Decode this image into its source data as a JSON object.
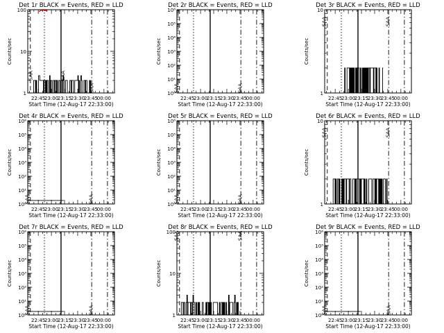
{
  "figure": {
    "colors": {
      "events": "#000000",
      "lld": "#ff0000",
      "background": "#ffffff"
    }
  },
  "chart_data": [
    {
      "type": "line",
      "title": "Det 1r BLACK = Events, RED = LLD",
      "xlabel": "Start Time (12-Aug-17 22:33:00)",
      "ylabel": "Counts/sec",
      "y_scale": "log",
      "ylim": [
        1,
        100
      ],
      "y_ticks": [
        {
          "v": 1,
          "label": "1"
        },
        {
          "v": 10,
          "label": "10"
        },
        {
          "v": 100,
          "label": "100"
        }
      ],
      "xlim": [
        "22:33",
        "00:12"
      ],
      "x_ticks": [
        "22:45",
        "23:00",
        "23:15",
        "23:30",
        "23:45",
        "00:00"
      ],
      "vlines": [
        {
          "x": "22:36",
          "style": "dashed"
        },
        {
          "x": "22:52",
          "style": "dotted"
        },
        {
          "x": "23:11",
          "style": "solid"
        },
        {
          "x": "23:46",
          "style": "dashdot"
        },
        {
          "x": "00:04",
          "style": "dashdot"
        }
      ],
      "annotations": [
        {
          "text": "SAA",
          "x": "22:38",
          "y": 2.6
        },
        {
          "text": "SAA",
          "x": "23:15",
          "y": 2.6
        },
        {
          "text": "SAA",
          "x": "23:48",
          "y": 1.3
        }
      ],
      "series": [
        {
          "name": "Events",
          "color": "#000000",
          "from": "22:39",
          "to": "23:45",
          "low": 1,
          "high": 2,
          "peak": 2.6
        },
        {
          "name": "LLD",
          "color": "#ff0000",
          "from": "22:46",
          "to": "22:55",
          "low": 90,
          "high": 100
        }
      ]
    },
    {
      "type": "line",
      "title": "Det 2r BLACK = Events, RED = LLD",
      "xlabel": "Start Time (12-Aug-17 22:33:00)",
      "ylabel": "Counts/sec",
      "y_scale": "log",
      "ylim": [
        1,
        1000000
      ],
      "y_ticks": [
        {
          "v": 1,
          "label": "10⁰"
        },
        {
          "v": 10,
          "label": "10¹"
        },
        {
          "v": 100,
          "label": "10²"
        },
        {
          "v": 1000,
          "label": "10³"
        },
        {
          "v": 10000,
          "label": "10⁴"
        },
        {
          "v": 100000,
          "label": "10⁵"
        },
        {
          "v": 1000000,
          "label": "10⁶"
        }
      ],
      "xlim": [
        "22:33",
        "00:12"
      ],
      "x_ticks": [
        "22:45",
        "23:00",
        "23:15",
        "23:30",
        "23:45",
        "00:00"
      ],
      "vlines": [
        {
          "x": "22:36",
          "style": "dashed"
        },
        {
          "x": "22:52",
          "style": "dotted"
        },
        {
          "x": "23:11",
          "style": "solid"
        },
        {
          "x": "23:46",
          "style": "dashdot"
        },
        {
          "x": "00:04",
          "style": "dashdot"
        }
      ],
      "annotations": [
        {
          "text": "SAA",
          "x": "22:34",
          "y": 2.2
        },
        {
          "text": "SAA",
          "x": "23:47",
          "y": 2.2
        }
      ],
      "series": []
    },
    {
      "type": "line",
      "title": "Det 3r BLACK = Events, RED = LLD",
      "xlabel": "Start Time (12-Aug-17 22:33:00)",
      "ylabel": "Counts/sec",
      "y_scale": "log",
      "ylim": [
        1,
        10
      ],
      "y_ticks": [
        {
          "v": 1,
          "label": "1"
        },
        {
          "v": 10,
          "label": "10"
        }
      ],
      "xlim": [
        "22:33",
        "00:12"
      ],
      "x_ticks": [
        "22:45",
        "23:00",
        "23:15",
        "23:30",
        "23:45",
        "00:00"
      ],
      "vlines": [
        {
          "x": "22:36",
          "style": "dashed"
        },
        {
          "x": "22:52",
          "style": "dotted"
        },
        {
          "x": "23:11",
          "style": "solid"
        },
        {
          "x": "23:46",
          "style": "dashdot"
        },
        {
          "x": "00:04",
          "style": "dashdot"
        }
      ],
      "annotations": [
        {
          "text": "SAA",
          "x": "22:34",
          "y": 7.2
        },
        {
          "text": "SAA",
          "x": "23:47",
          "y": 7.2
        }
      ],
      "series": [
        {
          "name": "Events",
          "color": "#000000",
          "from": "22:55",
          "to": "23:40",
          "low": 1,
          "high": 2,
          "peak": 2
        }
      ]
    },
    {
      "type": "line",
      "title": "Det 4r BLACK = Events, RED = LLD",
      "xlabel": "Start Time (12-Aug-17 22:33:00)",
      "ylabel": "Counts/sec",
      "y_scale": "log",
      "ylim": [
        1,
        1000000
      ],
      "y_ticks": [
        {
          "v": 1,
          "label": "10⁰"
        },
        {
          "v": 10,
          "label": "10¹"
        },
        {
          "v": 100,
          "label": "10²"
        },
        {
          "v": 1000,
          "label": "10³"
        },
        {
          "v": 10000,
          "label": "10⁴"
        },
        {
          "v": 100000,
          "label": "10⁵"
        },
        {
          "v": 1000000,
          "label": "10⁶"
        }
      ],
      "xlim": [
        "22:33",
        "00:12"
      ],
      "x_ticks": [
        "22:45",
        "23:00",
        "23:15",
        "23:30",
        "23:45",
        "00:00"
      ],
      "vlines": [
        {
          "x": "22:36",
          "style": "dashed"
        },
        {
          "x": "22:52",
          "style": "dotted"
        },
        {
          "x": "23:11",
          "style": "solid"
        },
        {
          "x": "23:46",
          "style": "dashdot"
        },
        {
          "x": "00:04",
          "style": "dashdot"
        }
      ],
      "annotations": [
        {
          "text": "SAA",
          "x": "22:34",
          "y": 2.2
        },
        {
          "text": "SAA",
          "x": "23:47",
          "y": 2.2
        }
      ],
      "series": [
        {
          "name": "Events",
          "color": "#000000",
          "points": [
            [
              "22:33",
              1.8
            ],
            [
              "22:36",
              1.8
            ],
            [
              "23:11",
              1.8
            ],
            [
              "23:14",
              1.8
            ]
          ]
        }
      ]
    },
    {
      "type": "line",
      "title": "Det 5r BLACK = Events, RED = LLD",
      "xlabel": "Start Time (12-Aug-17 22:33:00)",
      "ylabel": "Counts/sec",
      "y_scale": "log",
      "ylim": [
        1,
        1000000
      ],
      "y_ticks": [
        {
          "v": 1,
          "label": "10⁰"
        },
        {
          "v": 10,
          "label": "10¹"
        },
        {
          "v": 100,
          "label": "10²"
        },
        {
          "v": 1000,
          "label": "10³"
        },
        {
          "v": 10000,
          "label": "10⁴"
        },
        {
          "v": 100000,
          "label": "10⁵"
        },
        {
          "v": 1000000,
          "label": "10⁶"
        }
      ],
      "xlim": [
        "22:33",
        "00:12"
      ],
      "x_ticks": [
        "22:45",
        "23:00",
        "23:15",
        "23:30",
        "23:45",
        "00:00"
      ],
      "vlines": [
        {
          "x": "22:36",
          "style": "dashed"
        },
        {
          "x": "22:52",
          "style": "dotted"
        },
        {
          "x": "23:11",
          "style": "solid"
        },
        {
          "x": "23:46",
          "style": "dashdot"
        },
        {
          "x": "00:04",
          "style": "dashdot"
        }
      ],
      "annotations": [
        {
          "text": "SAA",
          "x": "22:34",
          "y": 2.2
        },
        {
          "text": "SAA",
          "x": "23:47",
          "y": 2.2
        }
      ],
      "series": []
    },
    {
      "type": "line",
      "title": "Det 6r BLACK = Events, RED = LLD",
      "xlabel": "Start Time (12-Aug-17 22:33:00)",
      "ylabel": "Counts/sec",
      "y_scale": "log",
      "ylim": [
        1,
        10
      ],
      "y_ticks": [
        {
          "v": 1,
          "label": "1"
        },
        {
          "v": 10,
          "label": "10"
        }
      ],
      "xlim": [
        "22:33",
        "00:12"
      ],
      "x_ticks": [
        "22:45",
        "23:00",
        "23:15",
        "23:30",
        "23:45",
        "00:00"
      ],
      "vlines": [
        {
          "x": "22:36",
          "style": "dashed"
        },
        {
          "x": "22:52",
          "style": "dotted"
        },
        {
          "x": "23:11",
          "style": "solid"
        },
        {
          "x": "23:46",
          "style": "dashdot"
        },
        {
          "x": "00:04",
          "style": "dashdot"
        }
      ],
      "annotations": [
        {
          "text": "SAA",
          "x": "22:34",
          "y": 7.2
        },
        {
          "text": "SAA",
          "x": "23:47",
          "y": 7.2
        }
      ],
      "series": [
        {
          "name": "Events",
          "color": "#000000",
          "from": "22:42",
          "to": "23:45",
          "low": 1,
          "high": 2,
          "peak": 2
        }
      ]
    },
    {
      "type": "line",
      "title": "Det 7r BLACK = Events, RED = LLD",
      "xlabel": "Start Time (12-Aug-17 22:33:00)",
      "ylabel": "Counts/sec",
      "y_scale": "log",
      "ylim": [
        1,
        1000000
      ],
      "y_ticks": [
        {
          "v": 1,
          "label": "10⁰"
        },
        {
          "v": 10,
          "label": "10¹"
        },
        {
          "v": 100,
          "label": "10²"
        },
        {
          "v": 1000,
          "label": "10³"
        },
        {
          "v": 10000,
          "label": "10⁴"
        },
        {
          "v": 100000,
          "label": "10⁵"
        },
        {
          "v": 1000000,
          "label": "10⁶"
        }
      ],
      "xlim": [
        "22:33",
        "00:12"
      ],
      "x_ticks": [
        "22:45",
        "23:00",
        "23:15",
        "23:30",
        "23:45",
        "00:00"
      ],
      "vlines": [
        {
          "x": "22:36",
          "style": "dashed"
        },
        {
          "x": "22:52",
          "style": "dotted"
        },
        {
          "x": "23:11",
          "style": "solid"
        },
        {
          "x": "23:46",
          "style": "dashdot"
        },
        {
          "x": "00:04",
          "style": "dashdot"
        }
      ],
      "annotations": [
        {
          "text": "SAA",
          "x": "22:34",
          "y": 2.2
        },
        {
          "text": "SAA",
          "x": "23:47",
          "y": 2.2
        }
      ],
      "series": [
        {
          "name": "Events",
          "color": "#000000",
          "points": [
            [
              "22:33",
              1.8
            ],
            [
              "22:36",
              1.8
            ],
            [
              "23:11",
              1.8
            ],
            [
              "23:14",
              1.8
            ]
          ]
        }
      ]
    },
    {
      "type": "line",
      "title": "Det 8r BLACK = Events, RED = LLD",
      "xlabel": "Start Time (12-Aug-17 22:33:00)",
      "ylabel": "Counts/sec",
      "y_scale": "log",
      "ylim": [
        1,
        100
      ],
      "y_ticks": [
        {
          "v": 1,
          "label": "1"
        },
        {
          "v": 10,
          "label": "10"
        },
        {
          "v": 100,
          "label": "100"
        }
      ],
      "xlim": [
        "22:33",
        "00:12"
      ],
      "x_ticks": [
        "22:45",
        "23:00",
        "23:15",
        "23:30",
        "23:45",
        "00:00"
      ],
      "vlines": [
        {
          "x": "22:36",
          "style": "dashed"
        },
        {
          "x": "22:52",
          "style": "dotted"
        },
        {
          "x": "23:11",
          "style": "solid"
        },
        {
          "x": "23:46",
          "style": "dashdot"
        },
        {
          "x": "00:04",
          "style": "dashdot"
        }
      ],
      "annotations": [
        {
          "text": "SAA",
          "x": "22:34",
          "y": 80
        },
        {
          "text": "SAA",
          "x": "23:47",
          "y": 80
        }
      ],
      "series": [
        {
          "name": "Events",
          "color": "#000000",
          "from": "22:38",
          "to": "23:44",
          "low": 1,
          "high": 2,
          "peak": 3
        }
      ]
    },
    {
      "type": "line",
      "title": "Det 9r BLACK = Events, RED = LLD",
      "xlabel": "Start Time (12-Aug-17 22:33:00)",
      "ylabel": "Counts/sec",
      "y_scale": "log",
      "ylim": [
        1,
        1000000
      ],
      "y_ticks": [
        {
          "v": 1,
          "label": "10⁰"
        },
        {
          "v": 10,
          "label": "10¹"
        },
        {
          "v": 100,
          "label": "10²"
        },
        {
          "v": 1000,
          "label": "10³"
        },
        {
          "v": 10000,
          "label": "10⁴"
        },
        {
          "v": 100000,
          "label": "10⁵"
        },
        {
          "v": 1000000,
          "label": "10⁶"
        }
      ],
      "xlim": [
        "22:33",
        "00:12"
      ],
      "x_ticks": [
        "22:45",
        "23:00",
        "23:15",
        "23:30",
        "23:45",
        "00:00"
      ],
      "vlines": [
        {
          "x": "22:36",
          "style": "dashed"
        },
        {
          "x": "22:52",
          "style": "dotted"
        },
        {
          "x": "23:11",
          "style": "solid"
        },
        {
          "x": "23:46",
          "style": "dashdot"
        },
        {
          "x": "00:04",
          "style": "dashdot"
        }
      ],
      "annotations": [
        {
          "text": "SAA",
          "x": "22:34",
          "y": 2.2
        },
        {
          "text": "SAA",
          "x": "23:48",
          "y": 2.2
        }
      ],
      "series": [
        {
          "name": "Events",
          "color": "#000000",
          "points": [
            [
              "22:33",
              1.8
            ],
            [
              "22:36",
              1.8
            ],
            [
              "23:11",
              1.8
            ],
            [
              "23:14",
              1.8
            ]
          ]
        }
      ]
    }
  ]
}
